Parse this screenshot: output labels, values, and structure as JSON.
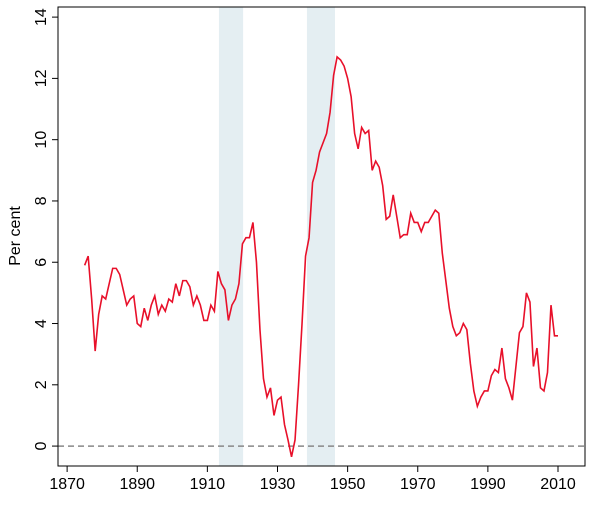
{
  "chart_data": {
    "type": "line",
    "ylabel": "Per cent",
    "x": [
      1875,
      1876,
      1877,
      1878,
      1879,
      1880,
      1881,
      1882,
      1883,
      1884,
      1885,
      1886,
      1887,
      1888,
      1889,
      1890,
      1891,
      1892,
      1893,
      1894,
      1895,
      1896,
      1897,
      1898,
      1899,
      1900,
      1901,
      1902,
      1903,
      1904,
      1905,
      1906,
      1907,
      1908,
      1909,
      1910,
      1911,
      1912,
      1913,
      1914,
      1915,
      1916,
      1917,
      1918,
      1919,
      1920,
      1921,
      1922,
      1923,
      1924,
      1925,
      1926,
      1927,
      1928,
      1929,
      1930,
      1931,
      1932,
      1933,
      1934,
      1935,
      1936,
      1937,
      1938,
      1939,
      1940,
      1941,
      1942,
      1943,
      1944,
      1945,
      1946,
      1947,
      1948,
      1949,
      1950,
      1951,
      1952,
      1953,
      1954,
      1955,
      1956,
      1957,
      1958,
      1959,
      1960,
      1961,
      1962,
      1963,
      1964,
      1965,
      1966,
      1967,
      1968,
      1969,
      1970,
      1971,
      1972,
      1973,
      1974,
      1975,
      1976,
      1977,
      1978,
      1979,
      1980,
      1981,
      1982,
      1983,
      1984,
      1985,
      1986,
      1987,
      1988,
      1989,
      1990,
      1991,
      1992,
      1993,
      1994,
      1995,
      1996,
      1997,
      1998,
      1999,
      2000,
      2001,
      2002,
      2003,
      2004,
      2005,
      2006,
      2007,
      2008,
      2009,
      2010
    ],
    "series": [
      {
        "color": "#e8102a",
        "values": [
          5.9,
          6.2,
          4.8,
          3.1,
          4.3,
          4.9,
          4.8,
          5.3,
          5.8,
          5.8,
          5.6,
          5.1,
          4.6,
          4.8,
          4.9,
          4.0,
          3.9,
          4.5,
          4.1,
          4.6,
          4.9,
          4.3,
          4.6,
          4.4,
          4.8,
          4.7,
          5.3,
          4.9,
          5.4,
          5.4,
          5.2,
          4.6,
          4.9,
          4.6,
          4.1,
          4.1,
          4.6,
          4.4,
          5.7,
          5.3,
          5.1,
          4.1,
          4.6,
          4.8,
          5.3,
          6.6,
          6.8,
          6.8,
          7.3,
          6.0,
          3.8,
          2.2,
          1.6,
          1.9,
          1.0,
          1.5,
          1.6,
          0.7,
          0.2,
          -0.35,
          0.2,
          2.0,
          4.0,
          6.2,
          6.8,
          8.6,
          9.0,
          9.6,
          9.9,
          10.2,
          10.9,
          12.1,
          12.7,
          12.6,
          12.4,
          12.0,
          11.4,
          10.2,
          9.7,
          10.4,
          10.2,
          10.3,
          9.0,
          9.3,
          9.1,
          8.5,
          7.4,
          7.5,
          8.2,
          7.5,
          6.8,
          6.9,
          6.9,
          7.6,
          7.3,
          7.3,
          7.0,
          7.3,
          7.3,
          7.5,
          7.7,
          7.6,
          6.3,
          5.4,
          4.5,
          3.9,
          3.6,
          3.7,
          4.0,
          3.8,
          2.7,
          1.8,
          1.3,
          1.6,
          1.8,
          1.8,
          2.3,
          2.5,
          2.4,
          3.2,
          2.2,
          1.9,
          1.5,
          2.6,
          3.7,
          3.9,
          5.0,
          4.7,
          2.6,
          3.2,
          1.9,
          1.8,
          2.4,
          4.6,
          3.6,
          3.6
        ]
      }
    ],
    "xlim": [
      1867.4,
      2017.7
    ],
    "ylim": [
      -0.65,
      14.33
    ],
    "xticks": [
      1870,
      1890,
      1910,
      1930,
      1950,
      1970,
      1990,
      2010
    ],
    "yticks": [
      0,
      2,
      4,
      6,
      8,
      10,
      12,
      14
    ],
    "bands": [
      [
        1913.3,
        1920.2
      ],
      [
        1938.4,
        1946.4
      ]
    ],
    "band_color": "#e4eef2",
    "hline": 0,
    "hline_color": "#888888"
  }
}
